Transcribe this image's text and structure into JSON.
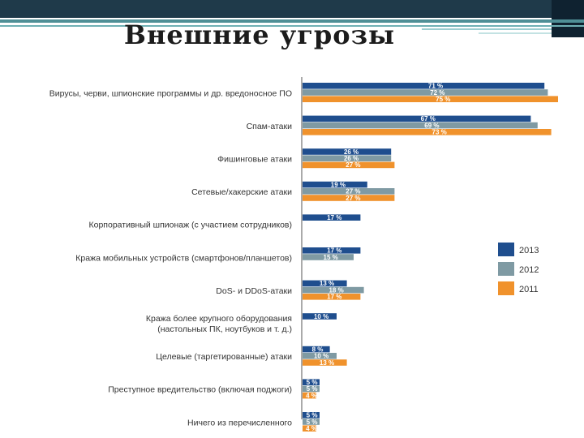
{
  "slide": {
    "title": "Внешние угрозы"
  },
  "colors": {
    "s2013": "#1f4e8e",
    "s2012": "#7f9aa3",
    "s2011": "#f0922c",
    "band": "#1f3a4a",
    "accent": "#4f8f96"
  },
  "chart_data": {
    "type": "bar",
    "orientation": "horizontal",
    "title": "Внешние угрозы",
    "xlabel": "",
    "ylabel": "",
    "xlim": [
      0,
      80
    ],
    "grid": false,
    "legend_position": "right",
    "categories": [
      [
        "Вирусы, черви, шпионские программы и др. вредоносное ПО"
      ],
      [
        "Спам-атаки"
      ],
      [
        "Фишинговые атаки"
      ],
      [
        "Сетевые/хакерские атаки"
      ],
      [
        "Корпоративный шпионаж (с участием сотрудников)"
      ],
      [
        "Кража мобильных устройств (смартфонов/планшетов)"
      ],
      [
        "DoS- и DDoS-атаки"
      ],
      [
        "Кража более крупного оборудования",
        "(настольных ПК, ноутбуков и т. д.)"
      ],
      [
        "Целевые (таргетированные) атаки"
      ],
      [
        "Преступное вредительство (включая поджоги)"
      ],
      [
        "Ничего из перечисленного"
      ]
    ],
    "series": [
      {
        "name": "2013",
        "values": [
          71,
          67,
          26,
          19,
          17,
          17,
          13,
          10,
          8,
          5,
          5
        ],
        "labels": [
          "71 %",
          "67 %",
          "26 %",
          "19 %",
          "17 %",
          "17 %",
          "13 %",
          "10 %",
          "8 %",
          "5 %",
          "5 %"
        ]
      },
      {
        "name": "2012",
        "values": [
          72,
          69,
          26,
          27,
          null,
          15,
          18,
          null,
          10,
          5,
          5
        ],
        "labels": [
          "72 %",
          "69 %",
          "26 %",
          "27 %",
          null,
          "15 %",
          "18 %",
          null,
          "10 %",
          "5 %",
          "5 %"
        ]
      },
      {
        "name": "2011",
        "values": [
          75,
          73,
          27,
          27,
          null,
          null,
          17,
          null,
          13,
          4,
          4
        ],
        "labels": [
          "75 %",
          "73 %",
          "27 %",
          "27 %",
          null,
          null,
          "17 %",
          null,
          "13 %",
          "4 %",
          "4 %"
        ]
      }
    ]
  }
}
